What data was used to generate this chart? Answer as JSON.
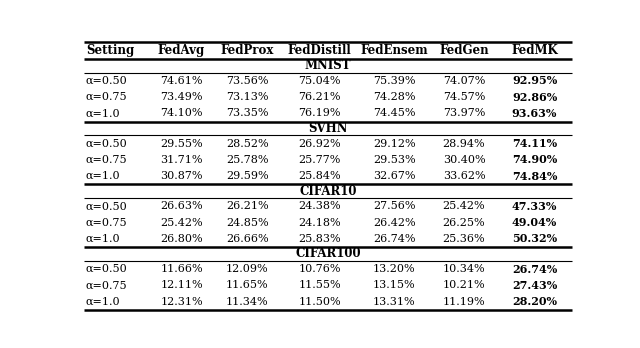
{
  "columns": [
    "Setting",
    "FedAvg",
    "FedProx",
    "FedDistill",
    "FedEnsem",
    "FedGen",
    "FedMK"
  ],
  "sections": [
    {
      "name": "MNIST",
      "rows": [
        [
          "α=0.50",
          "74.61%",
          "73.56%",
          "75.04%",
          "75.39%",
          "74.07%",
          "92.95%"
        ],
        [
          "α=0.75",
          "73.49%",
          "73.13%",
          "76.21%",
          "74.28%",
          "74.57%",
          "92.86%"
        ],
        [
          "α=1.0",
          "74.10%",
          "73.35%",
          "76.19%",
          "74.45%",
          "73.97%",
          "93.63%"
        ]
      ]
    },
    {
      "name": "SVHN",
      "rows": [
        [
          "α=0.50",
          "29.55%",
          "28.52%",
          "26.92%",
          "29.12%",
          "28.94%",
          "74.11%"
        ],
        [
          "α=0.75",
          "31.71%",
          "25.78%",
          "25.77%",
          "29.53%",
          "30.40%",
          "74.90%"
        ],
        [
          "α=1.0",
          "30.87%",
          "29.59%",
          "25.84%",
          "32.67%",
          "33.62%",
          "74.84%"
        ]
      ]
    },
    {
      "name": "CIFAR10",
      "rows": [
        [
          "α=0.50",
          "26.63%",
          "26.21%",
          "24.38%",
          "27.56%",
          "25.42%",
          "47.33%"
        ],
        [
          "α=0.75",
          "25.42%",
          "24.85%",
          "24.18%",
          "26.42%",
          "26.25%",
          "49.04%"
        ],
        [
          "α=1.0",
          "26.80%",
          "26.66%",
          "25.83%",
          "26.74%",
          "25.36%",
          "50.32%"
        ]
      ]
    },
    {
      "name": "CIFAR100",
      "rows": [
        [
          "α=0.50",
          "11.66%",
          "12.09%",
          "10.76%",
          "13.20%",
          "10.34%",
          "26.74%"
        ],
        [
          "α=0.75",
          "12.11%",
          "11.65%",
          "11.55%",
          "13.15%",
          "10.21%",
          "27.43%"
        ],
        [
          "α=1.0",
          "12.31%",
          "11.34%",
          "11.50%",
          "13.31%",
          "11.19%",
          "28.20%"
        ]
      ]
    }
  ],
  "background_color": "#ffffff",
  "text_color": "#000000",
  "font_size": 8.0,
  "header_font_size": 8.5,
  "section_font_size": 8.5
}
